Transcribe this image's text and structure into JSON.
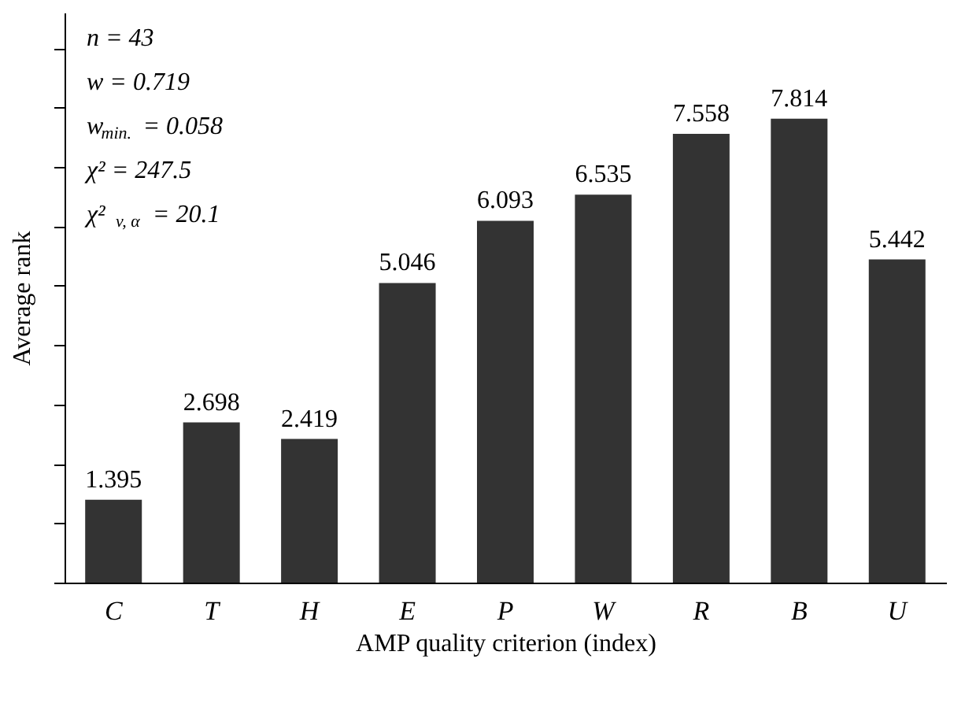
{
  "chart_data": {
    "type": "bar",
    "xlabel": "AMP quality criterion (index)",
    "ylabel": "Average rank",
    "categories": [
      "C",
      "T",
      "H",
      "E",
      "P",
      "W",
      "R",
      "B",
      "U"
    ],
    "values": [
      1.395,
      2.698,
      2.419,
      5.046,
      6.093,
      6.535,
      7.558,
      7.814,
      5.442
    ],
    "color": "#333333",
    "data_labels": true,
    "tick_labels": "x",
    "grid": false,
    "ylim": [
      0,
      9.6
    ],
    "yticks": [
      {
        "value": 0,
        "label": null
      },
      {
        "value": 1,
        "label": null
      },
      {
        "value": 2,
        "label": null
      },
      {
        "value": 3,
        "label": null
      },
      {
        "value": 4,
        "label": null
      },
      {
        "value": 5,
        "label": null
      },
      {
        "value": 6,
        "label": null
      },
      {
        "value": 7,
        "label": null
      },
      {
        "value": 8,
        "label": null
      },
      {
        "value": 9,
        "label": null
      }
    ],
    "annotations": [
      "n = 43",
      "w = 0.719",
      "w$_{min.}$ = 0.058",
      "χ² = 247.5",
      "χ²$_{v, α}$ = 20.1"
    ]
  }
}
